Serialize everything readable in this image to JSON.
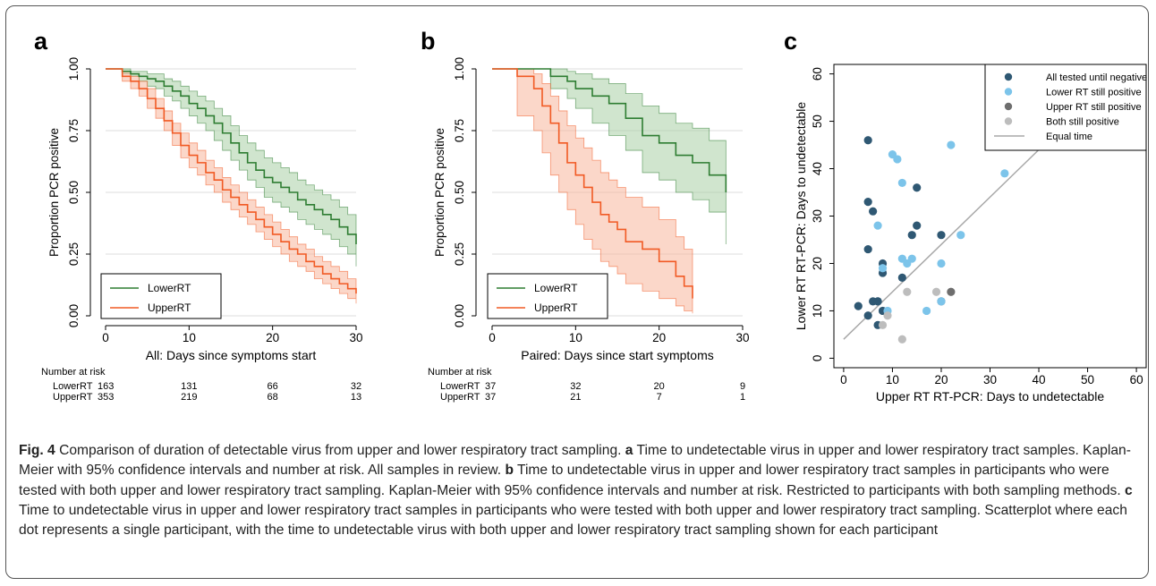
{
  "panels": {
    "a_label": "a",
    "b_label": "b",
    "c_label": "c"
  },
  "colors": {
    "lower": "#2e7d32",
    "lower_band": "#a9d0a6",
    "upper": "#f15a24",
    "upper_band": "#f7b79c",
    "all_tested": "#2f5873",
    "lower_still": "#7cc4ea",
    "upper_still": "#6e6e6e",
    "both_still": "#bdbdbd",
    "equal_line": "#a8a8a8"
  },
  "chart_data": [
    {
      "type": "line",
      "panel": "a",
      "xlabel": "All: Days since symptoms start",
      "ylabel": "Proportion PCR positive",
      "xlim": [
        0,
        30
      ],
      "ylim": [
        0,
        1
      ],
      "xticks": [
        "0",
        "10",
        "20",
        "30"
      ],
      "yticks": [
        "0.00",
        "0.25",
        "0.50",
        "0.75",
        "1.00"
      ],
      "grid": true,
      "legend_position": "bottom-left",
      "series": [
        {
          "name": "LowerRT",
          "x": [
            0,
            2,
            3,
            4,
            5,
            6,
            7,
            8,
            9,
            10,
            11,
            12,
            13,
            14,
            15,
            16,
            17,
            18,
            19,
            20,
            21,
            22,
            23,
            24,
            25,
            26,
            27,
            28,
            29,
            30
          ],
          "values": [
            1.0,
            0.99,
            0.98,
            0.97,
            0.96,
            0.95,
            0.93,
            0.91,
            0.89,
            0.86,
            0.84,
            0.81,
            0.78,
            0.74,
            0.7,
            0.66,
            0.62,
            0.59,
            0.56,
            0.54,
            0.52,
            0.5,
            0.47,
            0.45,
            0.43,
            0.41,
            0.39,
            0.36,
            0.33,
            0.29
          ],
          "lower_ci": [
            1.0,
            0.98,
            0.97,
            0.95,
            0.93,
            0.92,
            0.89,
            0.87,
            0.84,
            0.81,
            0.78,
            0.75,
            0.71,
            0.67,
            0.63,
            0.59,
            0.55,
            0.52,
            0.48,
            0.46,
            0.44,
            0.42,
            0.39,
            0.37,
            0.35,
            0.33,
            0.31,
            0.28,
            0.25,
            0.2
          ],
          "upper_ci": [
            1.0,
            1.0,
            0.99,
            0.99,
            0.98,
            0.98,
            0.96,
            0.95,
            0.93,
            0.91,
            0.89,
            0.87,
            0.84,
            0.81,
            0.77,
            0.73,
            0.7,
            0.67,
            0.64,
            0.62,
            0.6,
            0.58,
            0.55,
            0.53,
            0.51,
            0.49,
            0.47,
            0.44,
            0.41,
            0.38
          ]
        },
        {
          "name": "UpperRT",
          "x": [
            0,
            2,
            3,
            4,
            5,
            6,
            7,
            8,
            9,
            10,
            11,
            12,
            13,
            14,
            15,
            16,
            17,
            18,
            19,
            20,
            21,
            22,
            23,
            24,
            25,
            26,
            27,
            28,
            29,
            30
          ],
          "values": [
            1.0,
            0.97,
            0.95,
            0.92,
            0.88,
            0.84,
            0.79,
            0.74,
            0.69,
            0.65,
            0.62,
            0.58,
            0.55,
            0.51,
            0.48,
            0.45,
            0.42,
            0.39,
            0.36,
            0.33,
            0.3,
            0.27,
            0.25,
            0.22,
            0.2,
            0.17,
            0.15,
            0.13,
            0.11,
            0.09
          ],
          "lower_ci": [
            1.0,
            0.95,
            0.92,
            0.89,
            0.84,
            0.8,
            0.75,
            0.69,
            0.64,
            0.6,
            0.57,
            0.53,
            0.5,
            0.46,
            0.43,
            0.4,
            0.37,
            0.34,
            0.31,
            0.28,
            0.25,
            0.22,
            0.2,
            0.18,
            0.15,
            0.13,
            0.11,
            0.09,
            0.07,
            0.05
          ],
          "upper_ci": [
            1.0,
            0.99,
            0.97,
            0.95,
            0.92,
            0.88,
            0.83,
            0.78,
            0.74,
            0.7,
            0.67,
            0.63,
            0.6,
            0.56,
            0.53,
            0.5,
            0.47,
            0.44,
            0.41,
            0.38,
            0.35,
            0.32,
            0.29,
            0.27,
            0.24,
            0.22,
            0.2,
            0.18,
            0.15,
            0.12
          ]
        }
      ],
      "risk_table": {
        "title": "Number at risk",
        "rows": [
          {
            "label": "LowerRT",
            "values": [
              "163",
              "131",
              "66",
              "32"
            ]
          },
          {
            "label": "UpperRT",
            "values": [
              "353",
              "219",
              "68",
              "13"
            ]
          }
        ]
      }
    },
    {
      "type": "line",
      "panel": "b",
      "xlabel": "Paired: Days since start symptoms",
      "ylabel": "Proportion PCR positive",
      "xlim": [
        0,
        30
      ],
      "ylim": [
        0,
        1
      ],
      "xticks": [
        "0",
        "10",
        "20",
        "30"
      ],
      "yticks": [
        "0.00",
        "0.25",
        "0.50",
        "0.75",
        "1.00"
      ],
      "grid": true,
      "legend_position": "bottom-left",
      "series": [
        {
          "name": "LowerRT",
          "x": [
            0,
            7,
            9,
            10,
            12,
            14,
            16,
            18,
            20,
            22,
            24,
            26,
            28
          ],
          "values": [
            1.0,
            0.97,
            0.95,
            0.92,
            0.89,
            0.86,
            0.8,
            0.73,
            0.7,
            0.65,
            0.62,
            0.57,
            0.5
          ],
          "lower_ci": [
            1.0,
            0.92,
            0.88,
            0.84,
            0.78,
            0.73,
            0.67,
            0.58,
            0.55,
            0.5,
            0.47,
            0.42,
            0.29
          ],
          "upper_ci": [
            1.0,
            1.0,
            0.99,
            0.98,
            0.96,
            0.94,
            0.9,
            0.85,
            0.82,
            0.78,
            0.76,
            0.71,
            0.65
          ]
        },
        {
          "name": "UpperRT",
          "x": [
            0,
            3,
            5,
            6,
            7,
            8,
            9,
            10,
            11,
            12,
            13,
            14,
            15,
            16,
            18,
            20,
            22,
            23,
            24
          ],
          "values": [
            1.0,
            0.97,
            0.92,
            0.85,
            0.78,
            0.7,
            0.62,
            0.57,
            0.52,
            0.46,
            0.41,
            0.38,
            0.35,
            0.3,
            0.27,
            0.22,
            0.16,
            0.12,
            0.07
          ],
          "lower_ci": [
            1.0,
            0.81,
            0.75,
            0.66,
            0.57,
            0.5,
            0.43,
            0.37,
            0.31,
            0.27,
            0.22,
            0.2,
            0.17,
            0.13,
            0.1,
            0.07,
            0.04,
            0.02,
            0.01
          ],
          "upper_ci": [
            1.0,
            1.0,
            0.98,
            0.94,
            0.89,
            0.83,
            0.77,
            0.72,
            0.68,
            0.63,
            0.58,
            0.55,
            0.52,
            0.48,
            0.44,
            0.39,
            0.32,
            0.27,
            0.24
          ]
        }
      ],
      "risk_table": {
        "title": "Number at risk",
        "rows": [
          {
            "label": "LowerRT",
            "values": [
              "37",
              "32",
              "20",
              "9"
            ]
          },
          {
            "label": "UpperRT",
            "values": [
              "37",
              "21",
              "7",
              "1"
            ]
          }
        ]
      }
    },
    {
      "type": "scatter",
      "panel": "c",
      "xlabel": "Upper RT RT-PCR: Days to undetectable",
      "ylabel": "Lower RT RT-PCR: Days to undetectable",
      "xlim": [
        -2,
        62
      ],
      "ylim": [
        -2,
        62
      ],
      "xticks": [
        "0",
        "10",
        "20",
        "30",
        "40",
        "50",
        "60"
      ],
      "yticks": [
        "0",
        "10",
        "20",
        "30",
        "40",
        "50",
        "60"
      ],
      "grid": false,
      "legend_position": "top-right",
      "series": [
        {
          "name": "All tested until negative",
          "x": [
            5,
            5,
            5,
            6,
            8,
            8,
            7,
            6,
            7,
            8,
            5,
            3,
            7,
            12,
            14,
            15,
            15,
            20,
            20
          ],
          "y": [
            46,
            33,
            23,
            31,
            20,
            18,
            12,
            12,
            7,
            10,
            9,
            11,
            12,
            17,
            26,
            36,
            28,
            26,
            12
          ]
        },
        {
          "name": "Lower RT still positive",
          "x": [
            10,
            11,
            12,
            7,
            22,
            33,
            24,
            20,
            12,
            14,
            13,
            8,
            20,
            17,
            9
          ],
          "y": [
            43,
            42,
            37,
            28,
            45,
            39,
            26,
            20,
            21,
            21,
            20,
            19,
            12,
            10,
            10
          ]
        },
        {
          "name": "Upper RT still positive",
          "x": [
            22
          ],
          "y": [
            14
          ]
        },
        {
          "name": "Both still positive",
          "x": [
            13,
            19,
            12,
            9,
            8
          ],
          "y": [
            14,
            14,
            4,
            9,
            7
          ]
        }
      ],
      "reference_line": {
        "name": "Equal time",
        "x": [
          0,
          48
        ],
        "y": [
          4,
          52
        ]
      }
    }
  ],
  "caption": {
    "fig_label": "Fig. 4",
    "title": " Comparison of duration of detectable virus from upper and lower respiratory tract sampling. ",
    "a_label": "a",
    "a_text": " Time to undetectable virus in upper and lower respiratory tract samples. Kaplan-Meier with 95% confidence intervals and number at risk. All samples in review. ",
    "b_label": "b",
    "b_text": " Time to undetectable virus in upper and lower respiratory tract samples in participants who were tested with both upper and lower respiratory tract sampling. Kaplan-Meier with 95% confidence intervals and number at risk. Restricted to participants with both sampling methods. ",
    "c_label": "c",
    "c_text": " Time to undetectable virus in upper and lower respiratory tract samples in participants who were tested with both upper and lower respiratory tract sampling. Scatterplot where each dot represents a single participant, with the time to undetectable virus with both upper and lower respiratory tract sampling shown for each participant"
  }
}
